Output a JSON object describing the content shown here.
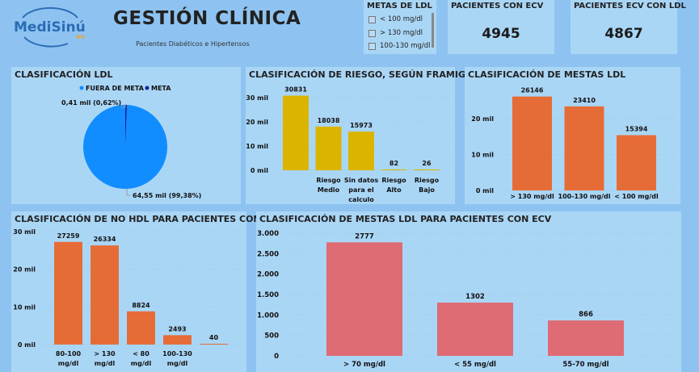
{
  "header": {
    "logo_text": "MediSinú",
    "logo_sub": "IPS",
    "title": "GESTIÓN CLÍNICA",
    "subtitle": "Pacientes Diabéticos e Hipertensos"
  },
  "slicer": {
    "title": "METAS DE LDL",
    "options": [
      "< 100 mg/dl",
      "> 130 mg/dl",
      "100-130 mg/dl"
    ]
  },
  "kpis": [
    {
      "label": "PACIENTES CON ECV",
      "value": "4945"
    },
    {
      "label": "PACIENTES ECV CON LDL",
      "value": "4867"
    }
  ],
  "colors": {
    "background": "#8ec3f1",
    "panel": "#aad6f6",
    "pie_main": "#118dff",
    "pie_meta": "#12239e",
    "gold": "#dbb400",
    "orange": "#e66c37",
    "rose": "#df6b74"
  },
  "chart_data": [
    {
      "type": "pie",
      "title": "CLASIFICACIÓN LDL",
      "legend": [
        "FUERA DE META",
        "META"
      ],
      "legend_position": "top-center",
      "values": [
        64550,
        410
      ],
      "data_labels": [
        "64,55 mil (99,38%)",
        "0,41 mil (0,62%)"
      ]
    },
    {
      "type": "bar",
      "title": "CLASIFICACIÓN DE RIESGO, SEGÚN FRAMIGHAN",
      "categories": [
        [
          "",
          ""
        ],
        [
          "Riesgo",
          "Medio"
        ],
        [
          "Sin datos",
          "para el",
          "calculo"
        ],
        [
          "Riesgo",
          "Alto"
        ],
        [
          "Riesgo",
          "Bajo"
        ]
      ],
      "values": [
        30831,
        18038,
        15973,
        82,
        26
      ],
      "value_labels": [
        "30831",
        "18038",
        "15973",
        "82",
        "26"
      ],
      "yticks": [
        0,
        10000,
        20000,
        30000
      ],
      "ytick_labels": [
        "0 mil",
        "10 mil",
        "20 mil",
        "30 mil"
      ],
      "ylim": [
        0,
        30000
      ]
    },
    {
      "type": "bar",
      "title": "CLASIFICACIÓN DE MESTAS LDL",
      "categories": [
        [
          "> 130 mg/dl"
        ],
        [
          "100-130 mg/dl"
        ],
        [
          "< 100 mg/dl"
        ]
      ],
      "values": [
        26146,
        23410,
        15394
      ],
      "value_labels": [
        "26146",
        "23410",
        "15394"
      ],
      "yticks": [
        0,
        10000,
        20000
      ],
      "ytick_labels": [
        "0 mil",
        "10 mil",
        "20 mil"
      ],
      "ylim": [
        0,
        30000
      ]
    },
    {
      "type": "bar",
      "title": "CLASIFICACIÓN DE NO HDL PARA PACIENTES CON ECV",
      "categories": [
        [
          "80-100",
          "mg/dl"
        ],
        [
          "> 130",
          "mg/dl"
        ],
        [
          "< 80",
          "mg/dl"
        ],
        [
          "100-130",
          "mg/dl"
        ],
        [
          "",
          ""
        ]
      ],
      "values": [
        27259,
        26334,
        8824,
        2493,
        40
      ],
      "value_labels": [
        "27259",
        "26334",
        "8824",
        "2493",
        "40"
      ],
      "yticks": [
        0,
        10000,
        20000,
        30000
      ],
      "ytick_labels": [
        "0 mil",
        "10 mil",
        "20 mil",
        "30 mil"
      ],
      "ylim": [
        0,
        30000
      ]
    },
    {
      "type": "bar",
      "title": "CLASIFICACIÓN DE MESTAS LDL PARA PACIENTES CON ECV",
      "categories": [
        [
          "> 70 mg/dl"
        ],
        [
          "< 55 mg/dl"
        ],
        [
          "55-70 mg/dl"
        ]
      ],
      "values": [
        2777,
        1302,
        866
      ],
      "value_labels": [
        "2777",
        "1302",
        "866"
      ],
      "yticks": [
        0,
        500,
        1000,
        1500,
        2000,
        2500,
        3000
      ],
      "ytick_labels": [
        "0",
        "500",
        "1.000",
        "1.500",
        "2.000",
        "2.500",
        "3.000"
      ],
      "ylim": [
        0,
        3000
      ]
    }
  ]
}
